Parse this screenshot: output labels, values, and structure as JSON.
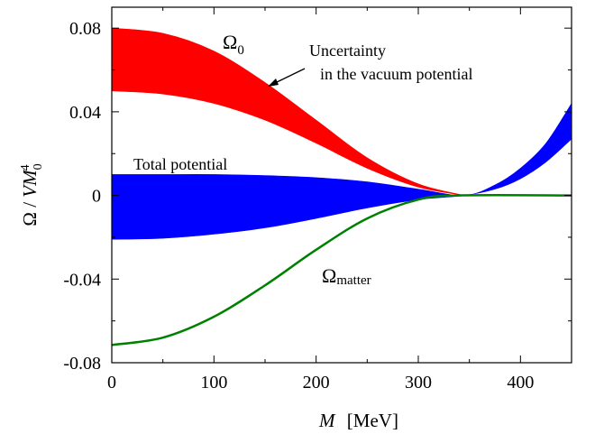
{
  "chart_data": {
    "type": "area",
    "xlabel_var": "M",
    "xlabel_unit": "[MeV]",
    "ylabel_num": "Ω",
    "ylabel_sep": " / ",
    "ylabel_var": "VM",
    "ylabel_sub": "0",
    "ylabel_sup": "4",
    "xlim": [
      0,
      450
    ],
    "ylim": [
      -0.08,
      0.09
    ],
    "x_ticks": [
      0,
      100,
      200,
      300,
      400
    ],
    "x_tick_labels": [
      "0",
      "100",
      "200",
      "300",
      "400"
    ],
    "y_ticks": [
      -0.08,
      -0.04,
      0,
      0.04,
      0.08
    ],
    "y_tick_labels": [
      "-0.08",
      "-0.04",
      "0",
      "0.04",
      "0.08"
    ],
    "grid": false,
    "series": [
      {
        "name": "Ω0",
        "kind": "band",
        "color": "#ff0000",
        "x": [
          0,
          50,
          100,
          150,
          200,
          250,
          300,
          345
        ],
        "upper": [
          0.08,
          0.0775,
          0.069,
          0.054,
          0.036,
          0.018,
          0.0055,
          0.0
        ],
        "lower": [
          0.05,
          0.0485,
          0.044,
          0.036,
          0.025,
          0.013,
          0.004,
          0.0
        ]
      },
      {
        "name": "Total potential",
        "kind": "band",
        "color": "#0000ff",
        "x": [
          0,
          50,
          100,
          150,
          200,
          250,
          300,
          345,
          375,
          400,
          425,
          450
        ],
        "upper": [
          0.01,
          0.01,
          0.01,
          0.0095,
          0.0085,
          0.0065,
          0.003,
          0.0,
          0.005,
          0.013,
          0.025,
          0.044
        ],
        "lower": [
          -0.021,
          -0.0205,
          -0.0185,
          -0.0155,
          -0.011,
          -0.006,
          -0.002,
          0.0,
          0.003,
          0.008,
          0.016,
          0.027
        ]
      },
      {
        "name": "Ωmatter",
        "kind": "line",
        "color": "#008000",
        "x": [
          0,
          50,
          100,
          150,
          200,
          250,
          300,
          340,
          450
        ],
        "y": [
          -0.0715,
          -0.068,
          -0.058,
          -0.043,
          -0.026,
          -0.011,
          -0.002,
          0.0,
          0.0
        ]
      }
    ],
    "annotations": [
      {
        "key": "omega0",
        "base": "Ω",
        "sub": "0"
      },
      {
        "key": "uncertainty",
        "lines": [
          "Uncertainty",
          "in the vacuum potential"
        ]
      },
      {
        "key": "total",
        "text": "Total potential"
      },
      {
        "key": "omega_matter",
        "base": "Ω",
        "sub": "matter"
      }
    ]
  }
}
